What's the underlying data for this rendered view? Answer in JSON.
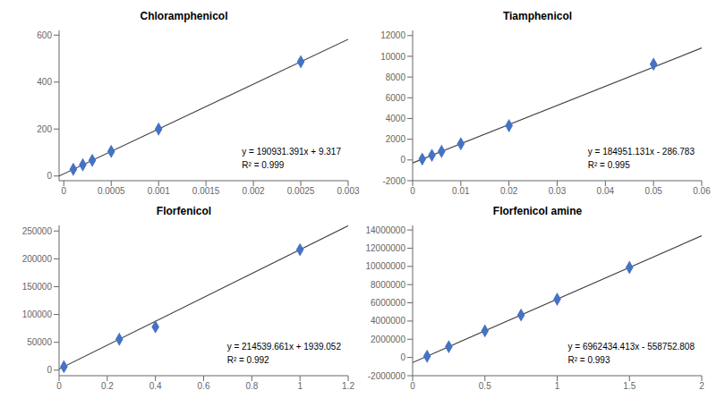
{
  "chart_data": [
    {
      "type": "scatter",
      "title": "Chloramphenicol",
      "annotations": [
        "y = 190931.391x + 9.317",
        "R² = 0.999"
      ],
      "xlim": [
        -5e-05,
        0.003
      ],
      "ylim": [
        -20,
        620
      ],
      "xticks": [
        0,
        0.0005,
        0.001,
        0.0015,
        0.002,
        0.0025,
        0.003
      ],
      "yticks": [
        0,
        200,
        400,
        600
      ],
      "grid": false,
      "series": [
        {
          "type": "line",
          "color": "#404040",
          "x": [
            -5e-05,
            0.003
          ],
          "values": [
            -0.22956955,
            582.111173
          ]
        },
        {
          "type": "scatter",
          "color": "#4472C4",
          "marker": "diamond",
          "x": [
            0.0001,
            0.0002,
            0.0003,
            0.0005,
            0.001,
            0.0025
          ],
          "values": [
            28.4,
            47.5,
            66.6,
            104.8,
            200.2,
            486.6
          ]
        }
      ]
    },
    {
      "type": "scatter",
      "title": "Tiamphenicol",
      "annotations": [
        "y = 184951.131x - 286.783",
        "R² = 0.995"
      ],
      "xlim": [
        0,
        0.06
      ],
      "ylim": [
        -2000,
        12500
      ],
      "xticks": [
        0,
        0.01,
        0.02,
        0.03,
        0.04,
        0.05,
        0.06
      ],
      "yticks": [
        -2000,
        0,
        2000,
        4000,
        6000,
        8000,
        10000,
        12000
      ],
      "grid": false,
      "series": [
        {
          "type": "line",
          "color": "#404040",
          "x": [
            0,
            0.06
          ],
          "values": [
            -286.783,
            10810.28486
          ]
        },
        {
          "type": "scatter",
          "color": "#4472C4",
          "marker": "diamond",
          "x": [
            0.002,
            0.004,
            0.006,
            0.01,
            0.02,
            0.05
          ],
          "values": [
            82.9,
            453.0,
            823.2,
            1562.2,
            3303.2,
            9247.0
          ]
        }
      ]
    },
    {
      "type": "scatter",
      "title": "Florfenicol",
      "annotations": [
        "y = 214539.661x + 1939.052",
        "R² = 0.992"
      ],
      "xlim": [
        0,
        1.2
      ],
      "ylim": [
        -10000,
        260000
      ],
      "xticks": [
        0,
        0.2,
        0.4,
        0.6,
        0.8,
        1,
        1.2
      ],
      "yticks": [
        0,
        50000,
        100000,
        150000,
        200000,
        250000
      ],
      "grid": false,
      "series": [
        {
          "type": "line",
          "color": "#404040",
          "x": [
            0,
            1.2
          ],
          "values": [
            1939.052,
            259386.6452
          ]
        },
        {
          "type": "scatter",
          "color": "#4472C4",
          "marker": "diamond",
          "x": [
            0.02,
            0.25,
            0.4,
            1.0
          ],
          "values": [
            6249.8,
            55573.5,
            77755.0,
            216478.7
          ]
        }
      ]
    },
    {
      "type": "scatter",
      "title": "Florfenicol amine",
      "annotations": [
        "y = 6962434.413x - 558752.808",
        "R² = 0.993"
      ],
      "xlim": [
        0,
        2.0
      ],
      "ylim": [
        -2000000,
        14500000
      ],
      "xticks": [
        0,
        0.5,
        1,
        1.5,
        2
      ],
      "yticks": [
        -2000000,
        0,
        2000000,
        4000000,
        6000000,
        8000000,
        10000000,
        12000000,
        14000000
      ],
      "grid": false,
      "series": [
        {
          "type": "line",
          "color": "#404040",
          "x": [
            0,
            2.0
          ],
          "values": [
            -558752.808,
            13366116.018
          ]
        },
        {
          "type": "scatter",
          "color": "#4472C4",
          "marker": "diamond",
          "x": [
            0.1,
            0.25,
            0.5,
            0.75,
            1.0,
            1.5
          ],
          "values": [
            137490.5,
            1181855.3,
            2922464.9,
            4663074.5,
            6403684.1,
            9885903.3
          ]
        }
      ]
    }
  ]
}
